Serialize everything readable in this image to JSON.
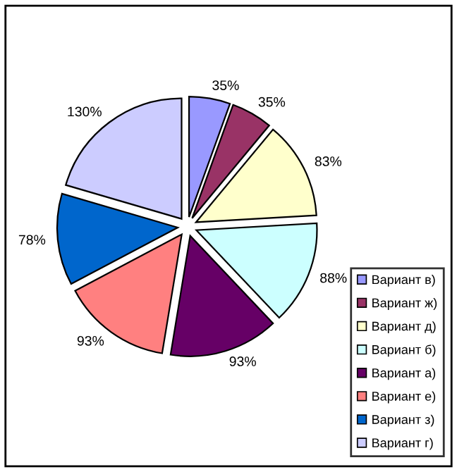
{
  "chart_data": {
    "type": "pie",
    "categories": [
      "Вариант в)",
      "Вариант ж)",
      "Вариант д)",
      "Вариант б)",
      "Вариант а)",
      "Вариант е)",
      "Вариант з)",
      "Вариант г)"
    ],
    "values": [
      35,
      35,
      83,
      88,
      93,
      93,
      78,
      130
    ],
    "value_labels": [
      "35%",
      "35%",
      "83%",
      "88%",
      "93%",
      "93%",
      "78%",
      "130%"
    ],
    "colors": [
      "#9999ff",
      "#993366",
      "#ffffcc",
      "#ccffff",
      "#660066",
      "#ff8080",
      "#0066cc",
      "#ccccff"
    ],
    "legend": "bottom right"
  }
}
